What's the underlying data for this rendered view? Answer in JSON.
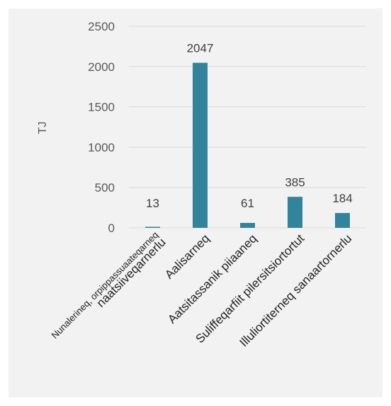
{
  "chart_data": {
    "type": "bar",
    "categories": [
      [
        "Nunalerineq, orpippassuaateqarneq",
        "naatsiiveqarnerlu"
      ],
      [
        "Aalisarneq"
      ],
      [
        "Aatsitassanik piiaaneq"
      ],
      [
        "Suliffeqarfiit pilersitsiortortut"
      ],
      [
        "Illuliortiterneq sanaartornerlu"
      ]
    ],
    "values": [
      13,
      2047,
      61,
      385,
      184
    ],
    "data_labels": [
      "13",
      "2047",
      "61",
      "385",
      "184"
    ],
    "ylabel": "TJ",
    "ylim": [
      0,
      2500
    ],
    "yticks": [
      0,
      500,
      1000,
      1500,
      2000,
      2500
    ],
    "grid": true,
    "bar_color": "#31849b",
    "legend": "none"
  }
}
